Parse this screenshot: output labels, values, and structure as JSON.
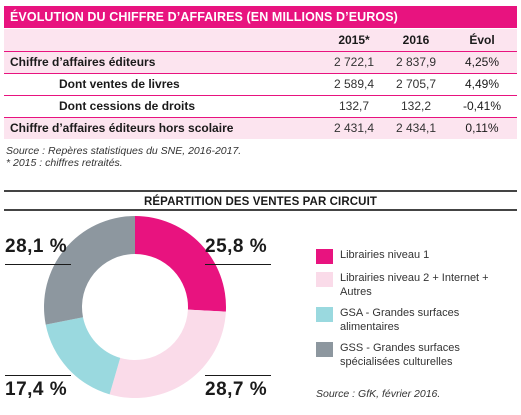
{
  "title": "ÉVOLUTION DU CHIFFRE D’AFFAIRES (EN MILLIONS D’EUROS)",
  "table": {
    "headers": [
      "",
      "2015*",
      "2016",
      "Évol"
    ],
    "rows": [
      {
        "label": "Chiffre d’affaires éditeurs",
        "v2015": "2 722,1",
        "v2016": "2 837,9",
        "evol": "4,25%"
      },
      {
        "label": "Dont ventes de livres",
        "v2015": "2 589,4",
        "v2016": "2 705,7",
        "evol": "4,49%"
      },
      {
        "label": "Dont cessions de droits",
        "v2015": "132,7",
        "v2016": "132,2",
        "evol": "-0,41%"
      },
      {
        "label": "Chiffre d’affaires éditeurs hors scolaire",
        "v2015": "2 431,4",
        "v2016": "2 434,1",
        "evol": "0,11%"
      }
    ]
  },
  "source1_line1": "Source : Repères statistiques du SNE, 2016-2017.",
  "source1_line2": "* 2015 : chiffres retraités.",
  "section_title": "RÉPARTITION DES VENTES PAR CIRCUIT",
  "chart_data": {
    "type": "pie",
    "donut": true,
    "title": "RÉPARTITION DES VENTES PAR CIRCUIT",
    "categories": [
      "Librairies niveau 1",
      "Librairies niveau 2 + Internet + Autres",
      "GSA - Grandes surfaces alimentaires",
      "GSS - Grandes surfaces spécialisées culturelles"
    ],
    "values": [
      25.8,
      28.7,
      17.4,
      28.1
    ],
    "labels": [
      "25,8 %",
      "28,7 %",
      "17,4 %",
      "28,1 %"
    ],
    "colors": [
      "#e8137f",
      "#fadbe9",
      "#9ad9df",
      "#8d979f"
    ],
    "legend": "right",
    "source": "Source : GfK, février 2016."
  }
}
